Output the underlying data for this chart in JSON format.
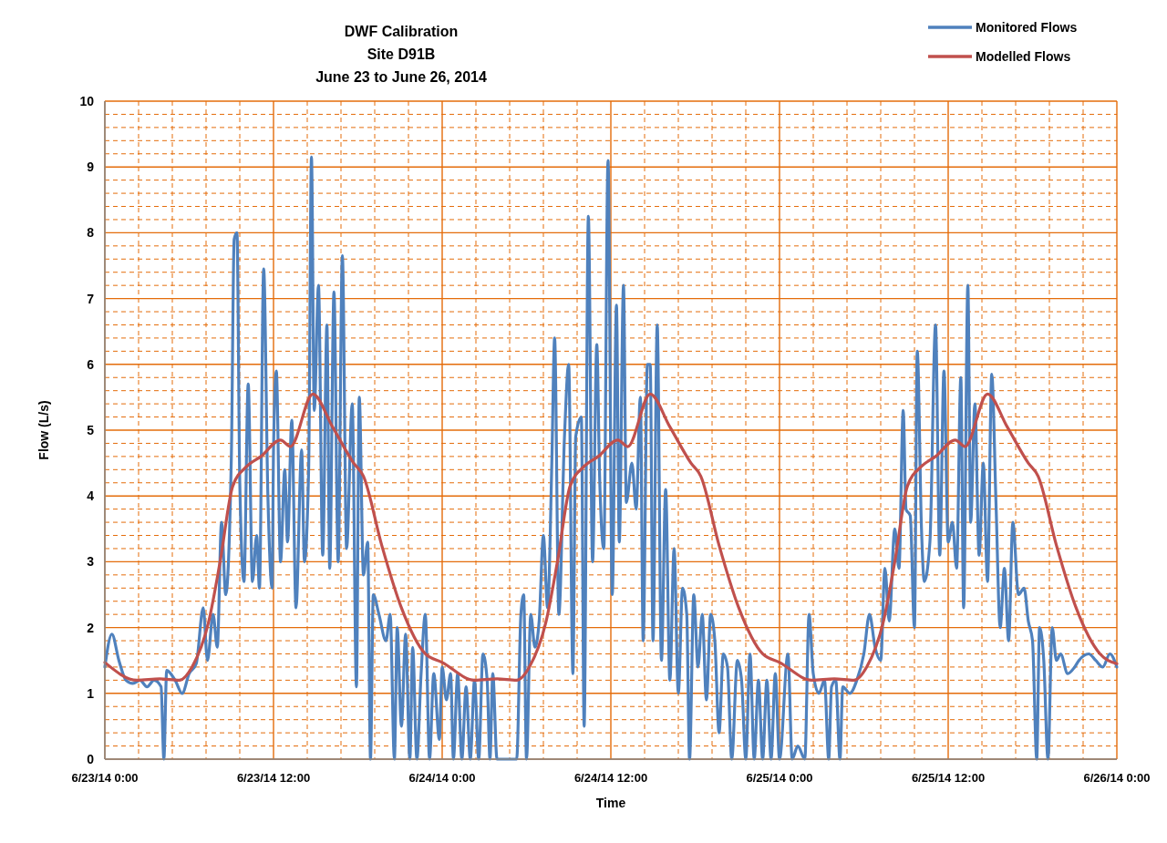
{
  "chart_data": {
    "type": "line",
    "title": "DWF Calibration",
    "subtitle": "Site D91B\nJune 23 to June 26, 2014",
    "xlabel": "Time",
    "ylabel": "Flow (L/s)",
    "xlim": [
      "2014-06-23T00:00",
      "2014-06-26T00:00"
    ],
    "xticks": [
      {
        "value": "2014-06-23T00:00",
        "label": "6/23/14 0:00"
      },
      {
        "value": "2014-06-23T02:24",
        "label": null
      },
      {
        "value": "2014-06-23T04:48",
        "label": null
      },
      {
        "value": "2014-06-23T07:12",
        "label": null
      },
      {
        "value": "2014-06-23T09:36",
        "label": null
      },
      {
        "value": "2014-06-23T12:00",
        "label": "6/23/14 12:00"
      },
      {
        "value": "2014-06-23T14:24",
        "label": null
      },
      {
        "value": "2014-06-23T16:48",
        "label": null
      },
      {
        "value": "2014-06-23T19:12",
        "label": null
      },
      {
        "value": "2014-06-23T21:36",
        "label": null
      },
      {
        "value": "2014-06-24T00:00",
        "label": "6/24/14 0:00"
      },
      {
        "value": "2014-06-24T02:24",
        "label": null
      },
      {
        "value": "2014-06-24T04:48",
        "label": null
      },
      {
        "value": "2014-06-24T07:12",
        "label": null
      },
      {
        "value": "2014-06-24T09:36",
        "label": null
      },
      {
        "value": "2014-06-24T12:00",
        "label": "6/24/14 12:00"
      },
      {
        "value": "2014-06-24T14:24",
        "label": null
      },
      {
        "value": "2014-06-24T16:48",
        "label": null
      },
      {
        "value": "2014-06-24T19:12",
        "label": null
      },
      {
        "value": "2014-06-24T21:36",
        "label": null
      },
      {
        "value": "2014-06-25T00:00",
        "label": "6/25/14 0:00"
      },
      {
        "value": "2014-06-25T02:24",
        "label": null
      },
      {
        "value": "2014-06-25T04:48",
        "label": null
      },
      {
        "value": "2014-06-25T07:12",
        "label": null
      },
      {
        "value": "2014-06-25T09:36",
        "label": null
      },
      {
        "value": "2014-06-25T12:00",
        "label": "6/25/14 12:00"
      },
      {
        "value": "2014-06-25T14:24",
        "label": null
      },
      {
        "value": "2014-06-25T16:48",
        "label": null
      },
      {
        "value": "2014-06-25T19:12",
        "label": null
      },
      {
        "value": "2014-06-25T21:36",
        "label": null
      },
      {
        "value": "2014-06-26T00:00",
        "label": "6/26/14 0:00"
      }
    ],
    "ylim": [
      0,
      10
    ],
    "yticks": [
      0,
      {
        "value": 0.2,
        "label": null
      },
      {
        "value": 0.4,
        "label": null
      },
      {
        "value": 0.6,
        "label": null
      },
      {
        "value": 0.8,
        "label": null
      },
      1,
      {
        "value": 1.2,
        "label": null
      },
      {
        "value": 1.4,
        "label": null
      },
      {
        "value": 1.6,
        "label": null
      },
      {
        "value": 1.8,
        "label": null
      },
      2,
      {
        "value": 2.2,
        "label": null
      },
      {
        "value": 2.4,
        "label": null
      },
      {
        "value": 2.6,
        "label": null
      },
      {
        "value": 2.8,
        "label": null
      },
      3,
      {
        "value": 3.2,
        "label": null
      },
      {
        "value": 3.4,
        "label": null
      },
      {
        "value": 3.6,
        "label": null
      },
      {
        "value": 3.8,
        "label": null
      },
      4,
      {
        "value": 4.2,
        "label": null
      },
      {
        "value": 4.4,
        "label": null
      },
      {
        "value": 4.6,
        "label": null
      },
      {
        "value": 4.8,
        "label": null
      },
      5,
      {
        "value": 5.2,
        "label": null
      },
      {
        "value": 5.4,
        "label": null
      },
      {
        "value": 5.6,
        "label": null
      },
      {
        "value": 5.8,
        "label": null
      },
      6,
      {
        "value": 6.2,
        "label": null
      },
      {
        "value": 6.4,
        "label": null
      },
      {
        "value": 6.6,
        "label": null
      },
      {
        "value": 6.8,
        "label": null
      },
      7,
      {
        "value": 7.2,
        "label": null
      },
      {
        "value": 7.4,
        "label": null
      },
      {
        "value": 7.6,
        "label": null
      },
      {
        "value": 7.8,
        "label": null
      },
      8,
      {
        "value": 8.2,
        "label": null
      },
      {
        "value": 8.4,
        "label": null
      },
      {
        "value": 8.6,
        "label": null
      },
      {
        "value": 8.8,
        "label": null
      },
      9,
      {
        "value": 9.2,
        "label": null
      },
      {
        "value": 9.4,
        "label": null
      },
      {
        "value": 9.6,
        "label": null
      },
      {
        "value": 9.8,
        "label": null
      },
      10
    ],
    "grid": true,
    "legend": "top right",
    "marker": "none",
    "line_style": "solid",
    "series": [
      {
        "name": "Monitored Flows",
        "color": "#4f81bd",
        "x": [
          "2014-06-23T00:00",
          "2014-06-23T00:30",
          "2014-06-23T01:00",
          "2014-06-23T01:30",
          "2014-06-23T02:00",
          "2014-06-23T02:30",
          "2014-06-23T03:00",
          "2014-06-23T03:30",
          "2014-06-23T04:00",
          "2014-06-23T04:12",
          "2014-06-23T04:24",
          "2014-06-23T05:00",
          "2014-06-23T05:30",
          "2014-06-23T06:00",
          "2014-06-23T06:30",
          "2014-06-23T07:00",
          "2014-06-23T07:18",
          "2014-06-23T07:42",
          "2014-06-23T08:00",
          "2014-06-23T08:18",
          "2014-06-23T08:36",
          "2014-06-23T09:00",
          "2014-06-23T09:12",
          "2014-06-23T09:24",
          "2014-06-23T09:36",
          "2014-06-23T09:54",
          "2014-06-23T10:12",
          "2014-06-23T10:30",
          "2014-06-23T10:48",
          "2014-06-23T11:00",
          "2014-06-23T11:18",
          "2014-06-23T11:36",
          "2014-06-23T11:54",
          "2014-06-23T12:00",
          "2014-06-23T12:12",
          "2014-06-23T12:30",
          "2014-06-23T12:48",
          "2014-06-23T13:00",
          "2014-06-23T13:18",
          "2014-06-23T13:36",
          "2014-06-23T14:00",
          "2014-06-23T14:12",
          "2014-06-23T14:30",
          "2014-06-23T14:42",
          "2014-06-23T14:54",
          "2014-06-23T15:12",
          "2014-06-23T15:30",
          "2014-06-23T15:48",
          "2014-06-23T16:00",
          "2014-06-23T16:18",
          "2014-06-23T16:36",
          "2014-06-23T16:54",
          "2014-06-23T17:12",
          "2014-06-23T17:36",
          "2014-06-23T17:54",
          "2014-06-23T18:06",
          "2014-06-23T18:24",
          "2014-06-23T18:42",
          "2014-06-23T18:54",
          "2014-06-23T19:06",
          "2014-06-23T19:30",
          "2014-06-23T20:00",
          "2014-06-23T20:18",
          "2014-06-23T20:36",
          "2014-06-23T20:48",
          "2014-06-23T21:06",
          "2014-06-23T21:24",
          "2014-06-23T21:42",
          "2014-06-23T21:54",
          "2014-06-23T22:12",
          "2014-06-23T22:30",
          "2014-06-23T22:48",
          "2014-06-23T23:06",
          "2014-06-23T23:24",
          "2014-06-23T23:48",
          "2014-06-24T00:00",
          "2014-06-24T00:18",
          "2014-06-24T00:36",
          "2014-06-24T00:48",
          "2014-06-24T01:06",
          "2014-06-24T01:24",
          "2014-06-24T01:42",
          "2014-06-24T02:00",
          "2014-06-24T02:18",
          "2014-06-24T02:36",
          "2014-06-24T02:54",
          "2014-06-24T03:12",
          "2014-06-24T03:24",
          "2014-06-24T03:36",
          "2014-06-24T03:54",
          "2014-06-24T04:18",
          "2014-06-24T04:48",
          "2014-06-24T05:18",
          "2014-06-24T05:36",
          "2014-06-24T05:48",
          "2014-06-24T06:00",
          "2014-06-24T06:18",
          "2014-06-24T06:36",
          "2014-06-24T06:54",
          "2014-06-24T07:12",
          "2014-06-24T07:30",
          "2014-06-24T07:48",
          "2014-06-24T08:00",
          "2014-06-24T08:18",
          "2014-06-24T08:42",
          "2014-06-24T09:00",
          "2014-06-24T09:18",
          "2014-06-24T09:30",
          "2014-06-24T09:54",
          "2014-06-24T10:06",
          "2014-06-24T10:24",
          "2014-06-24T10:42",
          "2014-06-24T11:00",
          "2014-06-24T11:12",
          "2014-06-24T11:30",
          "2014-06-24T11:48",
          "2014-06-24T12:06",
          "2014-06-24T12:24",
          "2014-06-24T12:36",
          "2014-06-24T12:54",
          "2014-06-24T13:06",
          "2014-06-24T13:30",
          "2014-06-24T13:48",
          "2014-06-24T14:06",
          "2014-06-24T14:18",
          "2014-06-24T14:36",
          "2014-06-24T14:48",
          "2014-06-24T15:00",
          "2014-06-24T15:18",
          "2014-06-24T15:36",
          "2014-06-24T15:54",
          "2014-06-24T16:12",
          "2014-06-24T16:30",
          "2014-06-24T16:48",
          "2014-06-24T17:06",
          "2014-06-24T17:24",
          "2014-06-24T17:36",
          "2014-06-24T17:54",
          "2014-06-24T18:12",
          "2014-06-24T18:30",
          "2014-06-24T18:48",
          "2014-06-24T19:06",
          "2014-06-24T19:24",
          "2014-06-24T19:42",
          "2014-06-24T20:00",
          "2014-06-24T20:18",
          "2014-06-24T20:36",
          "2014-06-24T21:00",
          "2014-06-24T21:18",
          "2014-06-24T21:36",
          "2014-06-24T21:54",
          "2014-06-24T22:12",
          "2014-06-24T22:30",
          "2014-06-24T22:48",
          "2014-06-24T23:06",
          "2014-06-24T23:24",
          "2014-06-24T23:42",
          "2014-06-25T00:00",
          "2014-06-25T00:36",
          "2014-06-25T00:54",
          "2014-06-25T01:18",
          "2014-06-25T01:48",
          "2014-06-25T02:06",
          "2014-06-25T02:24",
          "2014-06-25T02:48",
          "2014-06-25T03:12",
          "2014-06-25T03:30",
          "2014-06-25T03:42",
          "2014-06-25T04:00",
          "2014-06-25T04:18",
          "2014-06-25T04:30",
          "2014-06-25T05:00",
          "2014-06-25T05:30",
          "2014-06-25T06:00",
          "2014-06-25T06:24",
          "2014-06-25T06:48",
          "2014-06-25T07:12",
          "2014-06-25T07:30",
          "2014-06-25T07:48",
          "2014-06-25T08:12",
          "2014-06-25T08:30",
          "2014-06-25T08:48",
          "2014-06-25T09:00",
          "2014-06-25T09:18",
          "2014-06-25T09:36",
          "2014-06-25T09:48",
          "2014-06-25T10:06",
          "2014-06-25T10:18",
          "2014-06-25T10:42",
          "2014-06-25T11:06",
          "2014-06-25T11:24",
          "2014-06-25T11:42",
          "2014-06-25T12:00",
          "2014-06-25T12:18",
          "2014-06-25T12:36",
          "2014-06-25T12:54",
          "2014-06-25T13:06",
          "2014-06-25T13:24",
          "2014-06-25T13:36",
          "2014-06-25T13:54",
          "2014-06-25T14:12",
          "2014-06-25T14:30",
          "2014-06-25T14:48",
          "2014-06-25T15:06",
          "2014-06-25T15:24",
          "2014-06-25T15:42",
          "2014-06-25T16:00",
          "2014-06-25T16:18",
          "2014-06-25T16:36",
          "2014-06-25T17:00",
          "2014-06-25T17:24",
          "2014-06-25T17:42",
          "2014-06-25T18:00",
          "2014-06-25T18:18",
          "2014-06-25T18:30",
          "2014-06-25T18:48",
          "2014-06-25T19:06",
          "2014-06-25T19:24",
          "2014-06-25T19:42",
          "2014-06-25T20:00",
          "2014-06-25T20:30",
          "2014-06-25T21:00",
          "2014-06-25T21:18",
          "2014-06-25T22:00",
          "2014-06-25T22:30",
          "2014-06-25T23:00",
          "2014-06-25T23:30",
          "2014-06-26T00:00"
        ],
        "values": [
          1.4,
          1.9,
          1.5,
          1.2,
          1.15,
          1.2,
          1.1,
          1.2,
          1.1,
          0,
          1.35,
          1.2,
          1.0,
          1.3,
          1.45,
          2.3,
          1.5,
          2.2,
          1.7,
          3.6,
          2.5,
          4.6,
          7.9,
          8.0,
          4.2,
          2.7,
          5.7,
          2.7,
          3.4,
          2.6,
          7.45,
          4.0,
          2.6,
          4.7,
          5.9,
          3.0,
          4.4,
          3.3,
          5.15,
          2.3,
          4.7,
          3.0,
          4.4,
          9.15,
          5.3,
          7.2,
          3.1,
          6.6,
          2.9,
          7.1,
          3.0,
          7.65,
          3.2,
          5.4,
          1.1,
          5.5,
          2.8,
          3.3,
          0,
          2.5,
          2.2,
          1.8,
          2.2,
          0,
          2.0,
          0.5,
          1.9,
          0,
          1.7,
          0,
          1.3,
          2.2,
          0,
          1.3,
          0.3,
          1.4,
          0.9,
          1.3,
          0,
          1.3,
          0,
          1.1,
          0,
          1.2,
          0,
          1.6,
          1.2,
          0,
          1.3,
          0,
          0,
          0,
          0,
          2.2,
          2.5,
          0,
          2.2,
          1.7,
          2.1,
          3.4,
          2.3,
          4.5,
          6.4,
          2.2,
          4.9,
          6.0,
          1.3,
          4.9,
          5.2,
          0.5,
          8.25,
          3.0,
          6.3,
          4.3,
          3.2,
          9.1,
          2.5,
          6.9,
          3.3,
          7.2,
          3.9,
          4.5,
          3.8,
          5.5,
          1.8,
          6.0,
          6.0,
          1.8,
          6.6,
          1.5,
          4.1,
          1.2,
          3.2,
          1.0,
          2.6,
          2.2,
          0,
          2.5,
          1.4,
          2.2,
          0.9,
          2.2,
          1.8,
          0.4,
          1.6,
          1.4,
          0,
          1.5,
          1.2,
          0,
          1.6,
          0,
          1.2,
          0,
          1.2,
          0,
          1.3,
          0,
          1.6,
          0,
          0.2,
          0,
          2.2,
          1.3,
          1.0,
          1.2,
          0,
          1.1,
          1.2,
          0,
          1.1,
          1.0,
          1.2,
          1.6,
          2.2,
          1.7,
          1.5,
          2.9,
          2.1,
          3.5,
          2.9,
          5.3,
          3.8,
          3.7,
          2.0,
          6.2,
          3.5,
          2.7,
          3.3,
          6.6,
          3.1,
          5.9,
          3.3,
          3.6,
          2.9,
          5.8,
          2.3,
          7.2,
          3.6,
          5.4,
          3.1,
          4.5,
          2.7,
          5.85,
          3.9,
          2.0,
          2.9,
          1.8,
          3.6,
          2.5,
          2.6,
          2.1,
          1.8,
          0,
          2.0,
          1.5,
          0,
          2.0,
          1.5,
          1.6,
          1.3,
          1.4,
          1.5,
          1.6,
          1.5,
          1.4,
          1.6,
          1.4
        ]
      },
      {
        "name": "Modelled Flows",
        "color": "#c0504d",
        "x": [
          "2014-06-23T00:00",
          "2014-06-23T02:18",
          "2014-06-23T03:54",
          "2014-06-23T05:18",
          "2014-06-23T06:12",
          "2014-06-23T07:24",
          "2014-06-23T08:12",
          "2014-06-23T09:06",
          "2014-06-23T10:06",
          "2014-06-23T11:06",
          "2014-06-23T12:30",
          "2014-06-23T13:12",
          "2014-06-23T14:48",
          "2014-06-23T16:12",
          "2014-06-23T17:42",
          "2014-06-23T18:24",
          "2014-06-23T19:42",
          "2014-06-23T21:06",
          "2014-06-23T22:48",
          "2014-06-24T00:00",
          "2014-06-24T02:18",
          "2014-06-24T03:54",
          "2014-06-24T05:18",
          "2014-06-24T06:12",
          "2014-06-24T07:24",
          "2014-06-24T08:12",
          "2014-06-24T09:06",
          "2014-06-24T10:06",
          "2014-06-24T11:06",
          "2014-06-24T12:30",
          "2014-06-24T13:12",
          "2014-06-24T14:48",
          "2014-06-24T16:12",
          "2014-06-24T17:42",
          "2014-06-24T18:24",
          "2014-06-24T19:42",
          "2014-06-24T21:06",
          "2014-06-24T22:48",
          "2014-06-25T00:00",
          "2014-06-25T02:18",
          "2014-06-25T03:54",
          "2014-06-25T05:18",
          "2014-06-25T06:12",
          "2014-06-25T07:24",
          "2014-06-25T08:12",
          "2014-06-25T09:06",
          "2014-06-25T10:06",
          "2014-06-25T11:06",
          "2014-06-25T12:30",
          "2014-06-25T13:12",
          "2014-06-25T14:48",
          "2014-06-25T16:12",
          "2014-06-25T17:42",
          "2014-06-25T18:24",
          "2014-06-25T19:42",
          "2014-06-25T21:06",
          "2014-06-25T22:48",
          "2014-06-26T00:00"
        ],
        "values": [
          1.47,
          1.2,
          1.22,
          1.2,
          1.4,
          2.1,
          3.0,
          4.15,
          4.45,
          4.6,
          4.85,
          4.75,
          5.55,
          5.05,
          4.5,
          4.3,
          3.25,
          2.3,
          1.6,
          1.47,
          1.2,
          1.22,
          1.2,
          1.4,
          2.1,
          3.0,
          4.15,
          4.45,
          4.6,
          4.85,
          4.75,
          5.55,
          5.05,
          4.5,
          4.3,
          3.25,
          2.3,
          1.6,
          1.47,
          1.2,
          1.22,
          1.2,
          1.4,
          2.1,
          3.0,
          4.15,
          4.45,
          4.6,
          4.85,
          4.75,
          5.55,
          5.05,
          4.5,
          4.3,
          3.25,
          2.3,
          1.6,
          1.45
        ]
      }
    ]
  }
}
